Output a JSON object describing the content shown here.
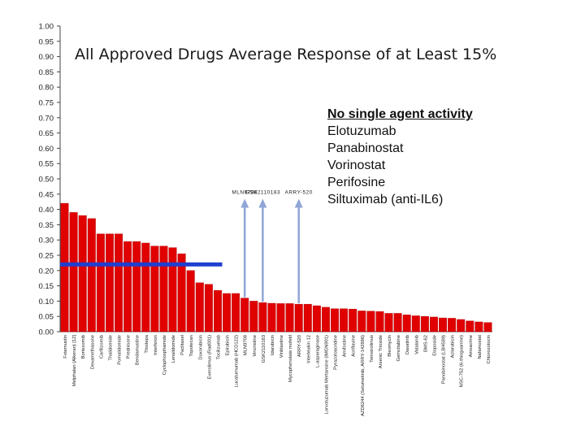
{
  "chart_data": {
    "type": "bar",
    "title": "All Approved Drugs Average Response of at Least 15%",
    "ylim": [
      0,
      1
    ],
    "ytick_step": 0.05,
    "yticks": [
      "0.00",
      "0.05",
      "0.10",
      "0.15",
      "0.20",
      "0.25",
      "0.30",
      "0.35",
      "0.40",
      "0.45",
      "0.50",
      "0.55",
      "0.60",
      "0.65",
      "0.70",
      "0.75",
      "0.80",
      "0.85",
      "0.90",
      "0.95",
      "1.00"
    ],
    "bar_color": "#e00000",
    "reference_line": {
      "value": 0.22,
      "from_category": 0,
      "to_category": 17,
      "color": "#1f3fd0"
    },
    "categories": [
      "Fotemustin",
      "Melphalan (Alkeran) [12]",
      "Bortezomib",
      "Dexamethasone",
      "Carfilzomib",
      "Thalidomide",
      "Pomalidomide",
      "Prednisone",
      "Bendamustine",
      "Thiotepa",
      "Interferon",
      "Cyclophosphamide",
      "Lenalidomide",
      "Paclitaxel",
      "Topotecan",
      "Doxorubicin",
      "Everolimus (Rad001)",
      "Tocilizumab",
      "Epirubicin",
      "Lucatumumab (HCD122)",
      "MLN9708",
      "Vincristine",
      "GSK2110183",
      "Idarubicin",
      "Vinblastine",
      "Mycophenolate mofetil",
      "ARRY-520",
      "Interleukin 12",
      "L-asparaginase",
      "Lorvotuzumab Mertansine (IMGN901)",
      "Pyrazoloacridine",
      "Amifostine",
      "Acriflavine",
      "AZD6244 (Selumetinib, ARRY-142886)",
      "Temsirolimus",
      "Arsenic Trioxide",
      "Bleomycin",
      "Gemcitabine",
      "Dasatinib",
      "Vatalanib",
      "BMS-62",
      "Etoposide",
      "Panobinostat (LBH589)",
      "Aclarubicin",
      "NSC-752 (6-thioguanine)",
      "Amsacrine",
      "Nafamostat",
      "Chlorozotocin"
    ],
    "values": [
      0.42,
      0.39,
      0.38,
      0.37,
      0.32,
      0.32,
      0.32,
      0.295,
      0.295,
      0.29,
      0.28,
      0.28,
      0.275,
      0.255,
      0.2,
      0.16,
      0.155,
      0.135,
      0.125,
      0.125,
      0.11,
      0.1,
      0.095,
      0.093,
      0.092,
      0.092,
      0.09,
      0.09,
      0.085,
      0.08,
      0.075,
      0.075,
      0.074,
      0.068,
      0.067,
      0.066,
      0.06,
      0.06,
      0.055,
      0.052,
      0.05,
      0.048,
      0.045,
      0.044,
      0.04,
      0.035,
      0.032,
      0.03
    ],
    "arrows": [
      {
        "label": "MLN9708",
        "category_index": 20,
        "value": 0.11
      },
      {
        "label": "GSK2110183",
        "category_index": 22,
        "value": 0.095
      },
      {
        "label": "ARRY-520",
        "category_index": 26,
        "value": 0.09
      }
    ],
    "arrow_top_value": 0.435,
    "arrow_color": "#8fa6d6",
    "callout": {
      "heading": "No single agent activity",
      "items": [
        "Elotuzumab",
        "Panabinostat",
        "Vorinostat",
        "Perifosine",
        "Siltuximab (anti-IL6)"
      ]
    }
  }
}
